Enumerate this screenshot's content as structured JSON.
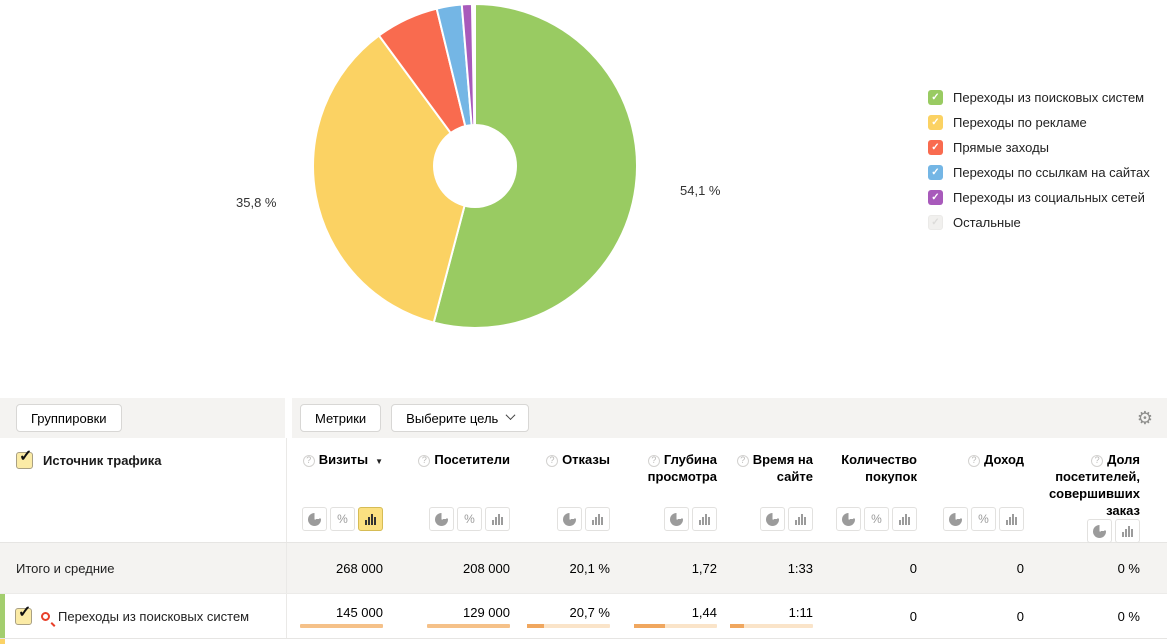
{
  "chart_data": {
    "type": "pie",
    "donut": true,
    "center": {
      "x": 475,
      "y": 166,
      "outer_radius": 162,
      "hole_radius": 42
    },
    "series": [
      {
        "name": "Переходы из поисковых систем",
        "value": 54.1,
        "color": "#99CB62"
      },
      {
        "name": "Переходы по рекламе",
        "value": 35.8,
        "color": "#FBD263"
      },
      {
        "name": "Прямые заходы",
        "value": 6.3,
        "color": "#F96B4F"
      },
      {
        "name": "Переходы по ссылкам на сайтах",
        "value": 2.5,
        "color": "#74B6E5"
      },
      {
        "name": "Переходы из социальных сетей",
        "value": 1.0,
        "color": "#A85ABB"
      },
      {
        "name": "Остальные",
        "value": 0.3,
        "color": "#FFFFFF",
        "hidden": true
      }
    ],
    "slice_labels": [
      {
        "text": "54,1 %",
        "x": 680,
        "y": 183
      },
      {
        "text": "35,8 %",
        "x": 236,
        "y": 195
      }
    ],
    "legend_position": "right"
  },
  "legend": {
    "items": [
      {
        "label": "Переходы из поисковых систем",
        "color": "#99CB62",
        "checked": true
      },
      {
        "label": "Переходы по рекламе",
        "color": "#FBD263",
        "checked": true
      },
      {
        "label": "Прямые заходы",
        "color": "#F96B4F",
        "checked": true
      },
      {
        "label": "Переходы по ссылкам на сайтах",
        "color": "#74B6E5",
        "checked": true
      },
      {
        "label": "Переходы из социальных сетей",
        "color": "#A85ABB",
        "checked": true
      },
      {
        "label": "Остальные",
        "color": "#F1F0EE",
        "checked": false
      }
    ],
    "check_glyph": "✓"
  },
  "toolbar": {
    "groupings": "Группировки",
    "metrics": "Метрики",
    "goal": "Выберите цель",
    "gear_glyph": "⚙"
  },
  "table": {
    "source_header": "Источник трафика",
    "columns": [
      {
        "label": "Визиты",
        "help": true,
        "sorted": true,
        "modes": [
          "pie",
          "percent",
          "bar"
        ],
        "active_mode": "bar"
      },
      {
        "label": "Посетители",
        "help": true,
        "sorted": false,
        "modes": [
          "pie",
          "percent",
          "bar"
        ]
      },
      {
        "label": "Отказы",
        "help": true,
        "sorted": false,
        "modes": [
          "pie",
          "bar"
        ]
      },
      {
        "label": "Глубина просмотра",
        "help": true,
        "sorted": false,
        "modes": [
          "pie",
          "bar"
        ]
      },
      {
        "label": "Время на сайте",
        "help": true,
        "sorted": false,
        "modes": [
          "pie",
          "bar"
        ]
      },
      {
        "label": "Количество покупок",
        "help": false,
        "sorted": false,
        "modes": [
          "pie",
          "percent",
          "bar"
        ]
      },
      {
        "label": "Доход",
        "help": true,
        "sorted": false,
        "modes": [
          "pie",
          "percent",
          "bar"
        ]
      },
      {
        "label": "Доля посетителей, совершивших заказ",
        "help": true,
        "sorted": false,
        "modes": [
          "pie",
          "bar"
        ]
      }
    ],
    "totals": {
      "label": "Итого и средние",
      "values": [
        "268 000",
        "208 000",
        "20,1 %",
        "1,72",
        "1:33",
        "0",
        "0",
        "0 %"
      ]
    },
    "rows": [
      {
        "label": "Переходы из поисковых систем",
        "checked": true,
        "stripe_color": "#A3CE6E",
        "values": [
          "145 000",
          "129 000",
          "20,7 %",
          "1,44",
          "1:11",
          "0",
          "0",
          "0 %"
        ],
        "bars": [
          {
            "type": "solid",
            "color": "#F5C189"
          },
          {
            "type": "solid",
            "color": "#F5C189"
          },
          {
            "type": "split",
            "fill": 0.21,
            "fill_color": "#F0A75F",
            "track_color": "#FAE4C9"
          },
          {
            "type": "split",
            "fill": 0.37,
            "fill_color": "#F0A75F",
            "track_color": "#FAE4C9"
          },
          {
            "type": "split",
            "fill": 0.17,
            "fill_color": "#F0A75F",
            "track_color": "#FAE4C9"
          },
          null,
          null,
          null
        ]
      }
    ],
    "next_row_stripe_color": "#FBD266"
  }
}
